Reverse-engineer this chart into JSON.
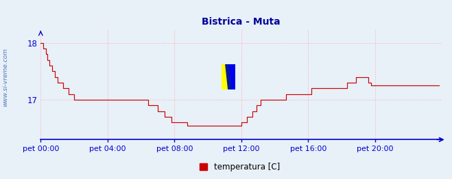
{
  "title": "Bistrica - Muta",
  "background_color": "#e8f0f8",
  "plot_bg_color": "#e8f0f8",
  "grid_color": "#ffaaaa",
  "axis_color": "#0000cc",
  "line_color": "#cc0000",
  "title_color": "#000099",
  "watermark_text": "www.si-vreme.com",
  "watermark_color": "#5577bb",
  "legend_label": "temperatura [C]",
  "legend_color": "#cc0000",
  "yticks": [
    17,
    18
  ],
  "ylim": [
    16.3,
    18.25
  ],
  "xlim_min": 0,
  "xlim_max": 287,
  "xtick_labels": [
    "pet 00:00",
    "pet 04:00",
    "pet 08:00",
    "pet 12:00",
    "pet 16:00",
    "pet 20:00"
  ],
  "xtick_positions": [
    0,
    48,
    96,
    144,
    192,
    240
  ],
  "temperature_data": [
    18.0,
    18.0,
    17.9,
    17.9,
    17.8,
    17.7,
    17.6,
    17.6,
    17.5,
    17.5,
    17.4,
    17.4,
    17.3,
    17.3,
    17.3,
    17.3,
    17.2,
    17.2,
    17.2,
    17.2,
    17.1,
    17.1,
    17.1,
    17.1,
    17.0,
    17.0,
    17.0,
    17.0,
    17.0,
    17.0,
    17.0,
    17.0,
    17.0,
    17.0,
    17.0,
    17.0,
    17.0,
    17.0,
    17.0,
    17.0,
    17.0,
    17.0,
    17.0,
    17.0,
    17.0,
    17.0,
    17.0,
    17.0,
    17.0,
    17.0,
    17.0,
    17.0,
    17.0,
    17.0,
    17.0,
    17.0,
    17.0,
    17.0,
    17.0,
    17.0,
    17.0,
    17.0,
    17.0,
    17.0,
    17.0,
    17.0,
    17.0,
    17.0,
    17.0,
    17.0,
    17.0,
    17.0,
    17.0,
    17.0,
    17.0,
    17.0,
    17.0,
    16.9,
    16.9,
    16.9,
    16.9,
    16.9,
    16.9,
    16.9,
    16.8,
    16.8,
    16.8,
    16.8,
    16.8,
    16.7,
    16.7,
    16.7,
    16.7,
    16.7,
    16.6,
    16.6,
    16.6,
    16.6,
    16.6,
    16.6,
    16.6,
    16.6,
    16.6,
    16.6,
    16.6,
    16.55,
    16.55,
    16.55,
    16.55,
    16.55,
    16.55,
    16.55,
    16.55,
    16.55,
    16.55,
    16.55,
    16.55,
    16.55,
    16.55,
    16.55,
    16.55,
    16.55,
    16.55,
    16.55,
    16.55,
    16.55,
    16.55,
    16.55,
    16.55,
    16.55,
    16.55,
    16.55,
    16.55,
    16.55,
    16.55,
    16.55,
    16.55,
    16.55,
    16.55,
    16.55,
    16.55,
    16.55,
    16.55,
    16.55,
    16.6,
    16.6,
    16.6,
    16.6,
    16.7,
    16.7,
    16.7,
    16.7,
    16.8,
    16.8,
    16.8,
    16.9,
    16.9,
    16.9,
    17.0,
    17.0,
    17.0,
    17.0,
    17.0,
    17.0,
    17.0,
    17.0,
    17.0,
    17.0,
    17.0,
    17.0,
    17.0,
    17.0,
    17.0,
    17.0,
    17.0,
    17.0,
    17.1,
    17.1,
    17.1,
    17.1,
    17.1,
    17.1,
    17.1,
    17.1,
    17.1,
    17.1,
    17.1,
    17.1,
    17.1,
    17.1,
    17.1,
    17.1,
    17.1,
    17.1,
    17.2,
    17.2,
    17.2,
    17.2,
    17.2,
    17.2,
    17.2,
    17.2,
    17.2,
    17.2,
    17.2,
    17.2,
    17.2,
    17.2,
    17.2,
    17.2,
    17.2,
    17.2,
    17.2,
    17.2,
    17.2,
    17.2,
    17.2,
    17.2,
    17.2,
    17.2,
    17.3,
    17.3,
    17.3,
    17.3,
    17.3,
    17.3,
    17.4,
    17.4,
    17.4,
    17.4,
    17.4,
    17.4,
    17.4,
    17.4,
    17.4,
    17.3,
    17.3,
    17.25,
    17.25,
    17.25,
    17.25,
    17.25,
    17.25,
    17.25,
    17.25,
    17.25,
    17.25,
    17.25,
    17.25,
    17.25,
    17.25,
    17.25,
    17.25,
    17.25,
    17.25,
    17.25,
    17.25,
    17.25,
    17.25,
    17.25,
    17.25,
    17.25,
    17.25,
    17.25,
    17.25,
    17.25,
    17.25,
    17.25,
    17.25,
    17.25,
    17.25,
    17.25,
    17.25,
    17.25,
    17.25,
    17.25,
    17.25,
    17.25,
    17.25,
    17.25,
    17.25,
    17.25,
    17.25,
    17.25,
    17.25,
    17.25,
    17.25
  ]
}
